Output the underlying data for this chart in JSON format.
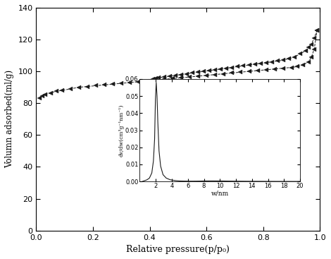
{
  "title": "",
  "xlabel": "Relative pressure(p/p₀)",
  "ylabel": "Volumn adsorbed(ml/g)",
  "xlim": [
    0.0,
    1.0
  ],
  "ylim": [
    0,
    140
  ],
  "yticks": [
    0,
    20,
    40,
    60,
    80,
    100,
    120,
    140
  ],
  "xticks": [
    0.0,
    0.2,
    0.4,
    0.6,
    0.8,
    1.0
  ],
  "inset": {
    "xlabel": "w/nm",
    "ylabel": "dv/dw(cm³g⁻¹nm⁻¹)",
    "xlim": [
      0,
      20
    ],
    "ylim": [
      0,
      0.06
    ],
    "xticks": [
      2,
      4,
      6,
      8,
      10,
      12,
      14,
      16,
      18,
      20
    ],
    "yticks": [
      0.0,
      0.01,
      0.02,
      0.03,
      0.04,
      0.05,
      0.06
    ]
  },
  "adsorption_x": [
    0.01,
    0.02,
    0.03,
    0.05,
    0.07,
    0.09,
    0.12,
    0.15,
    0.18,
    0.21,
    0.24,
    0.27,
    0.3,
    0.33,
    0.36,
    0.39,
    0.42,
    0.45,
    0.48,
    0.51,
    0.54,
    0.57,
    0.6,
    0.63,
    0.66,
    0.69,
    0.72,
    0.75,
    0.78,
    0.81,
    0.84,
    0.87,
    0.9,
    0.92,
    0.94,
    0.96,
    0.97,
    0.98,
    0.99
  ],
  "adsorption_y": [
    83,
    84.5,
    85.5,
    86.5,
    87.5,
    88,
    89,
    90,
    90.5,
    91,
    91.5,
    92,
    92.5,
    93,
    93.5,
    94,
    94.5,
    95,
    95.5,
    96,
    96.5,
    97,
    97.5,
    98,
    98.5,
    99,
    99.5,
    100,
    100.5,
    101,
    101.5,
    102,
    102.5,
    103,
    104,
    106,
    109,
    114,
    126
  ],
  "desorption_x": [
    0.99,
    0.98,
    0.97,
    0.96,
    0.95,
    0.93,
    0.91,
    0.89,
    0.87,
    0.85,
    0.83,
    0.81,
    0.79,
    0.77,
    0.75,
    0.73,
    0.71,
    0.69,
    0.67,
    0.65,
    0.63,
    0.61,
    0.59,
    0.57,
    0.55,
    0.53,
    0.51,
    0.49,
    0.47,
    0.45,
    0.43,
    0.42,
    0.41
  ],
  "desorption_y": [
    126,
    121,
    117,
    115,
    113,
    111,
    109,
    108,
    107,
    106.5,
    106,
    105.5,
    105,
    104.5,
    104,
    103.5,
    103,
    102.5,
    102,
    101.5,
    101,
    100.5,
    100,
    99.5,
    99,
    98.5,
    98,
    97.5,
    97,
    96.5,
    96,
    95.5,
    95
  ],
  "psd_x": [
    0.3,
    0.6,
    0.9,
    1.2,
    1.5,
    1.7,
    1.85,
    1.95,
    2.05,
    2.15,
    2.25,
    2.4,
    2.6,
    2.9,
    3.3,
    3.8,
    4.5,
    5.0,
    5.5,
    6.0,
    6.5,
    7.0,
    7.5,
    8.0,
    8.5,
    9.0,
    9.5,
    10.0,
    10.5,
    11.0,
    11.5,
    12.0,
    12.5,
    13.0,
    13.5,
    14.0,
    14.5,
    15.0,
    15.5,
    16.0,
    16.5,
    17.0,
    17.5,
    18.0,
    18.5,
    19.0,
    19.5,
    20.0
  ],
  "psd_y": [
    0.0,
    0.0005,
    0.001,
    0.002,
    0.005,
    0.012,
    0.025,
    0.048,
    0.058,
    0.05,
    0.035,
    0.018,
    0.009,
    0.004,
    0.002,
    0.001,
    0.0005,
    0.0003,
    0.00025,
    0.00022,
    0.0002,
    0.00022,
    0.00025,
    0.0003,
    0.00032,
    0.00034,
    0.00033,
    0.0003,
    0.00028,
    0.00025,
    0.00022,
    0.0002,
    0.00018,
    0.00016,
    0.00014,
    0.00013,
    0.00012,
    0.00011,
    0.0001,
    9e-05,
    8e-05,
    7e-05,
    7e-05,
    6e-05,
    6e-05,
    5e-05,
    5e-05,
    4e-05
  ],
  "marker_color": "#1a1a1a",
  "line_color": "#1a1a1a",
  "bg_color": "#ffffff"
}
